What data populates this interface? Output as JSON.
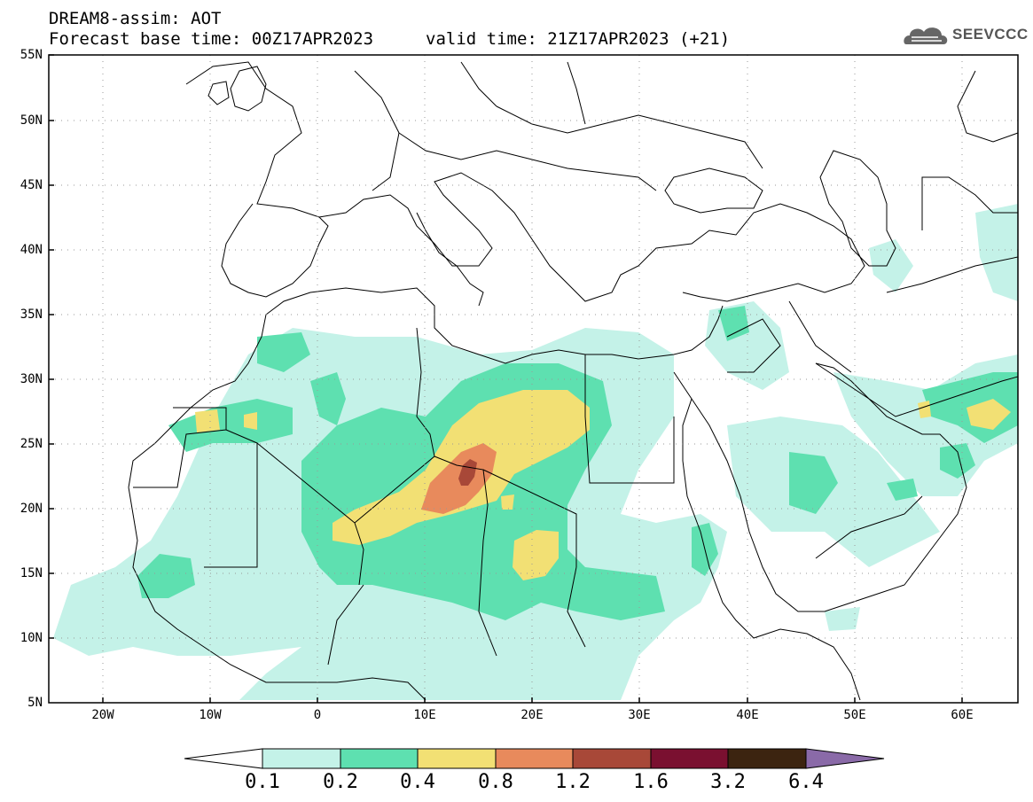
{
  "header": {
    "title": "DREAM8-assim: AOT",
    "base_time": "Forecast base time: 00Z17APR2023",
    "valid_time": "valid time: 21Z17APR2023 (+21)",
    "logo_text": "SEEVCCC"
  },
  "map": {
    "lat_labels": [
      "55N",
      "50N",
      "45N",
      "40N",
      "35N",
      "30N",
      "25N",
      "20N",
      "15N",
      "10N",
      "5N"
    ],
    "lon_labels": [
      "20W",
      "10W",
      "0",
      "10E",
      "20E",
      "30E",
      "40E",
      "50E",
      "60E"
    ]
  },
  "colorbar": {
    "labels": [
      "0.1",
      "0.2",
      "0.4",
      "0.8",
      "1.2",
      "1.6",
      "3.2",
      "6.4"
    ],
    "colors": [
      "#c4f2e8",
      "#5ee0b0",
      "#f2e074",
      "#e88a5c",
      "#a84838",
      "#7a1030",
      "#3c2410",
      "#8a6aa8"
    ],
    "under_color": "#ffffff"
  },
  "colors": {
    "level1": "#c4f2e8",
    "level2": "#5ee0b0",
    "level3": "#f2e074",
    "level4": "#e88a5c",
    "level5": "#a84838",
    "level6": "#7a1030"
  }
}
